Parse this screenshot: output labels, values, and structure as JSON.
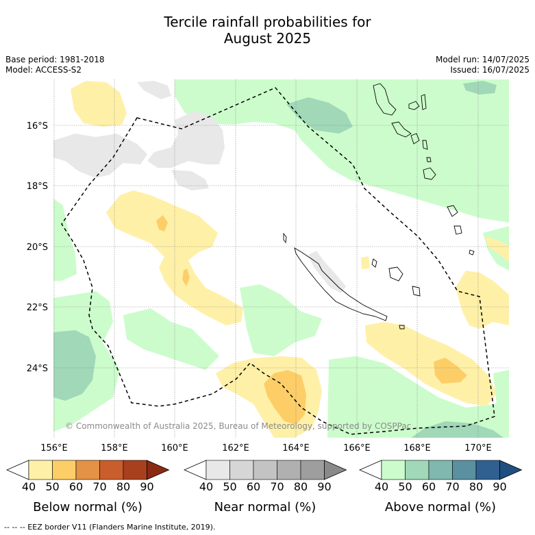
{
  "title_line1": "Tercile rainfall probabilities for",
  "title_line2": "August 2025",
  "base_period": "Base period: 1981-2018",
  "model": "Model: ACCESS-S2",
  "model_run": "Model run: 14/07/2025",
  "issued": "Issued: 16/07/2025",
  "copyright": "© Commonwealth of Australia 2025, Bureau of Meteorology, supported by COSPPac",
  "footer": "--  --  -- EEZ border V11 (Flanders Marine Institute, 2019).",
  "lat_labels": [
    "16°S",
    "18°S",
    "20°S",
    "22°S",
    "24°S"
  ],
  "lon_labels": [
    "156°E",
    "158°E",
    "160°E",
    "162°E",
    "164°E",
    "166°E",
    "168°E",
    "170°E"
  ],
  "colorbars": [
    {
      "name": "Below normal (%)",
      "ticks": [
        "40",
        "50",
        "60",
        "70",
        "80",
        "90"
      ],
      "colors": [
        "#ffffff",
        "#fff0a8",
        "#fdce68",
        "#e39246",
        "#c95d2c",
        "#a8401e",
        "#8b2a14"
      ]
    },
    {
      "name": "Near normal (%)",
      "ticks": [
        "40",
        "50",
        "60",
        "70",
        "80",
        "90"
      ],
      "colors": [
        "#ffffff",
        "#e8e8e8",
        "#d6d6d6",
        "#c3c3c3",
        "#b0b0b0",
        "#9e9e9e",
        "#8a8a8a"
      ]
    },
    {
      "name": "Above normal (%)",
      "ticks": [
        "40",
        "50",
        "60",
        "70",
        "80",
        "90"
      ],
      "colors": [
        "#ffffff",
        "#ccfccc",
        "#a0d8b8",
        "#80b8b0",
        "#5a90a0",
        "#30608f",
        "#1f4f80"
      ]
    }
  ]
}
